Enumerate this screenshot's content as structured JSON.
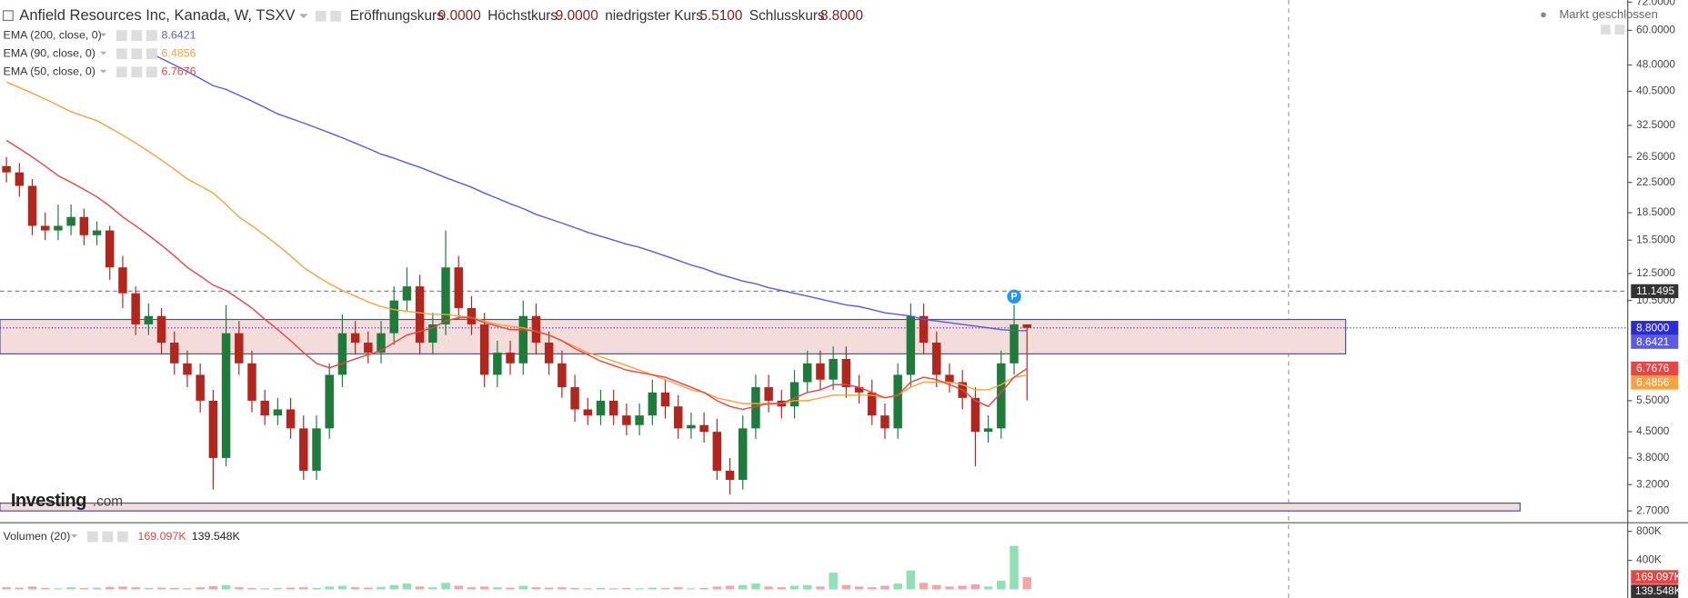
{
  "chart_data": {
    "type": "candlestick",
    "title": "Anfield Resources Inc, Kanada, W, TSXV",
    "ohlc_legend": [
      {
        "label": "Eröffnungskurs",
        "value": "9.0000"
      },
      {
        "label": "Höchstkurs",
        "value": "9.0000"
      },
      {
        "label": "niedrigster Kurs",
        "value": "5.5100"
      },
      {
        "label": "Schlusskurs",
        "value": "8.8000"
      }
    ],
    "status": "Markt geschlossen",
    "logo": [
      "Investing",
      ".com"
    ],
    "log_scale": true,
    "ylim": [
      2.52,
      73
    ],
    "yticks": [
      {
        "value": 72,
        "label": "72.0000"
      },
      {
        "value": 60,
        "label": "60.0000"
      },
      {
        "value": 48,
        "label": "48.0000"
      },
      {
        "value": 40.5,
        "label": "40.5000"
      },
      {
        "value": 32.5,
        "label": "32.5000"
      },
      {
        "value": 26.5,
        "label": "26.5000"
      },
      {
        "value": 22.5,
        "label": "22.5000"
      },
      {
        "value": 18.5,
        "label": "18.5000"
      },
      {
        "value": 15.5,
        "label": "15.5000"
      },
      {
        "value": 12.5,
        "label": "12.5000"
      },
      {
        "value": 10.5,
        "label": "10.5000"
      },
      {
        "value": 5.5,
        "label": "5.5000"
      },
      {
        "value": 4.5,
        "label": "4.5000"
      },
      {
        "value": 3.8,
        "label": "3.8000"
      },
      {
        "value": 3.2,
        "label": "3.2000"
      },
      {
        "value": 2.7,
        "label": "2.7000"
      }
    ],
    "up_color": "#1e7b3c",
    "down_color": "#b3261e",
    "open": [
      25,
      24,
      22,
      17,
      16.5,
      17,
      18,
      16,
      16.5,
      13,
      11,
      9,
      9.5,
      8,
      7,
      6.5,
      5.5,
      3.8,
      8.5,
      7,
      5.5,
      5,
      5.2,
      4.6,
      3.5,
      4.6,
      6.5,
      8.5,
      8,
      7.5,
      8.5,
      10.5,
      11.5,
      8,
      9,
      13,
      10,
      9,
      6.5,
      7.5,
      7,
      9.5,
      8,
      7,
      6,
      5.2,
      5,
      5.5,
      5,
      4.7,
      5,
      5.8,
      5.3,
      4.6,
      4.7,
      4.5,
      3.5,
      3.3,
      4.6,
      6,
      5.5,
      5.3,
      6.2,
      7,
      6.3,
      7.2,
      6,
      5.8,
      5,
      4.6,
      6.5,
      9.5,
      8,
      6.5,
      6.2,
      5.6,
      4.5,
      4.6,
      7,
      9
    ],
    "high": [
      26.5,
      25.5,
      23,
      18.5,
      19.5,
      19.5,
      19,
      17.5,
      17,
      14,
      11.5,
      10.3,
      10,
      8.6,
      7.6,
      7,
      5.9,
      10.2,
      9.2,
      7.6,
      5.9,
      5.6,
      5.6,
      5,
      5,
      7,
      9.6,
      9.2,
      8.6,
      9.2,
      11.5,
      13,
      12.4,
      9.7,
      16.5,
      14,
      10.8,
      9.7,
      8.1,
      8.1,
      10.5,
      10.3,
      8.6,
      7.6,
      6.5,
      5.6,
      5.9,
      5.9,
      5.4,
      5.4,
      6.3,
      6.3,
      5.7,
      5.1,
      5.1,
      4.9,
      3.8,
      5,
      6.5,
      6.5,
      5.9,
      6.7,
      7.6,
      7.6,
      7.8,
      7.8,
      6.5,
      6.3,
      5.4,
      7,
      10.3,
      10.3,
      8.6,
      7,
      6.7,
      6,
      5,
      7.6,
      10.2,
      9
    ],
    "low": [
      22.5,
      20.5,
      16,
      15.5,
      15.5,
      16,
      15,
      15,
      12,
      10,
      8.4,
      8.4,
      7.4,
      6.5,
      6,
      5.1,
      3.1,
      3.6,
      6.5,
      5.1,
      4.7,
      4.7,
      4.3,
      3.3,
      3.3,
      4.3,
      6,
      7.4,
      7,
      7,
      7.9,
      9.8,
      7.4,
      7.4,
      8.4,
      9.3,
      8.4,
      6,
      6,
      6.5,
      6.5,
      7.4,
      6.5,
      5.6,
      4.8,
      4.7,
      4.7,
      4.7,
      4.4,
      4.4,
      4.7,
      4.9,
      4.3,
      4.3,
      4.2,
      3.3,
      3,
      3.1,
      4.3,
      5.1,
      4.9,
      4.9,
      5.8,
      5.9,
      5.9,
      5.6,
      5.4,
      4.7,
      4.3,
      4.3,
      6,
      7.4,
      6,
      5.8,
      5.2,
      3.6,
      4.2,
      4.3,
      6.5,
      5.51
    ],
    "close": [
      24,
      22,
      17,
      16.5,
      17,
      18,
      16,
      16.5,
      13,
      11,
      9,
      9.5,
      8,
      7,
      6.5,
      5.5,
      3.8,
      8.5,
      7,
      5.5,
      5,
      5.2,
      4.6,
      3.5,
      4.6,
      6.5,
      8.5,
      8,
      7.5,
      8.5,
      10.5,
      11.5,
      8,
      9,
      13,
      10,
      9,
      6.5,
      7.5,
      7,
      9.5,
      8,
      7,
      6,
      5.2,
      5,
      5.5,
      5,
      4.7,
      5,
      5.8,
      5.3,
      4.6,
      4.7,
      4.5,
      3.5,
      3.3,
      4.6,
      6,
      5.5,
      5.3,
      6.2,
      7,
      6.3,
      7.2,
      6,
      5.8,
      5,
      4.6,
      6.5,
      9.5,
      8,
      6.5,
      6.2,
      5.6,
      4.5,
      4.6,
      7,
      9,
      8.8
    ],
    "series": [
      {
        "name": "EMA (200, close, 0)",
        "color": "#5b5be0",
        "values": [
          null,
          null,
          null,
          null,
          null,
          null,
          null,
          null,
          null,
          null,
          null,
          52,
          50,
          48,
          46,
          44,
          42,
          41,
          39.5,
          38,
          36.5,
          35,
          34,
          33,
          32,
          31,
          30,
          29,
          28,
          27,
          26.3,
          25.5,
          24.8,
          24,
          23.2,
          22.5,
          21.8,
          21,
          20.3,
          19.6,
          19,
          18.3,
          17.8,
          17.3,
          16.8,
          16.3,
          15.9,
          15.5,
          15.1,
          14.8,
          14.4,
          14,
          13.6,
          13.2,
          12.9,
          12.5,
          12.2,
          11.9,
          11.7,
          11.4,
          11.2,
          11,
          10.8,
          10.6,
          10.4,
          10.2,
          10.1,
          9.9,
          9.7,
          9.6,
          9.5,
          9.3,
          9.2,
          9.1,
          9,
          8.9,
          8.8,
          8.7,
          8.65,
          8.6421
        ]
      },
      {
        "name": "EMA (90, close, 0)",
        "color": "#f5a340",
        "values": [
          43,
          41.5,
          40,
          38.5,
          37,
          35.5,
          34.5,
          33.5,
          32,
          30.5,
          29,
          27.5,
          26,
          24.5,
          23,
          22,
          21,
          19.5,
          18,
          17,
          16,
          15,
          14,
          13,
          12.3,
          11.7,
          11.2,
          10.8,
          10.4,
          10.1,
          9.9,
          9.8,
          9.7,
          9.6,
          9.6,
          9.5,
          9.4,
          9.2,
          9,
          8.9,
          8.8,
          8.6,
          8.4,
          8.1,
          7.8,
          7.5,
          7.3,
          7.1,
          6.9,
          6.7,
          6.5,
          6.3,
          6.1,
          5.9,
          5.8,
          5.6,
          5.5,
          5.4,
          5.4,
          5.4,
          5.4,
          5.5,
          5.5,
          5.6,
          5.7,
          5.7,
          5.7,
          5.7,
          5.6,
          5.7,
          6,
          6.2,
          6.2,
          6.2,
          6.1,
          5.9,
          5.9,
          6.1,
          6.4,
          6.4856
        ]
      },
      {
        "name": "EMA (50, close, 0)",
        "color": "#e84545",
        "values": [
          29.5,
          28,
          26.5,
          25,
          23.5,
          22.5,
          21.5,
          20.5,
          19.3,
          18,
          17,
          16,
          15,
          14,
          13,
          12.3,
          11.6,
          11.2,
          10.6,
          10,
          9.3,
          8.7,
          8.1,
          7.5,
          7,
          6.8,
          7,
          7.2,
          7.4,
          7.6,
          8,
          8.4,
          8.6,
          8.8,
          9.2,
          9.4,
          9.4,
          9.1,
          8.9,
          8.7,
          8.7,
          8.6,
          8.4,
          8.1,
          7.7,
          7.4,
          7.1,
          6.9,
          6.7,
          6.6,
          6.5,
          6.4,
          6.2,
          6,
          5.8,
          5.5,
          5.3,
          5.2,
          5.3,
          5.4,
          5.4,
          5.6,
          5.8,
          5.9,
          6.1,
          6.1,
          6,
          5.8,
          5.6,
          5.7,
          6.2,
          6.4,
          6.3,
          6.1,
          5.9,
          5.5,
          5.3,
          5.8,
          6.4,
          6.7676
        ]
      }
    ],
    "price_line": 11.1495,
    "marker": "P",
    "zones": [
      {
        "low": 7.44,
        "high": 9.29,
        "color": "#f3dcd9",
        "border": "#3f51b5"
      },
      {
        "low": 2.7,
        "high": 2.84,
        "color": "#f3dcd9",
        "border": "#3f51b5"
      }
    ],
    "volume": {
      "title": "Volumen (20)",
      "up_color": "#8fe0b4",
      "down_color": "#f3a5a5",
      "values": [
        30000,
        25000,
        40000,
        20000,
        15000,
        30000,
        20000,
        25000,
        35000,
        40000,
        30000,
        20000,
        25000,
        20000,
        15000,
        30000,
        45000,
        60000,
        30000,
        20000,
        15000,
        20000,
        25000,
        30000,
        20000,
        40000,
        50000,
        30000,
        25000,
        35000,
        60000,
        80000,
        40000,
        30000,
        90000,
        50000,
        30000,
        40000,
        30000,
        25000,
        50000,
        30000,
        25000,
        30000,
        20000,
        15000,
        20000,
        15000,
        20000,
        15000,
        25000,
        20000,
        30000,
        15000,
        20000,
        40000,
        50000,
        60000,
        80000,
        40000,
        30000,
        50000,
        60000,
        40000,
        230000,
        60000,
        40000,
        30000,
        50000,
        80000,
        260000,
        90000,
        60000,
        40000,
        50000,
        70000,
        40000,
        120000,
        600000,
        169097
      ],
      "last_label": "169.097K",
      "ma_label": "139.548K",
      "ylim": [
        0,
        904000
      ],
      "yticks": [
        {
          "value": 800000,
          "label": "800K"
        },
        {
          "value": 400000,
          "label": "400K"
        }
      ]
    }
  }
}
